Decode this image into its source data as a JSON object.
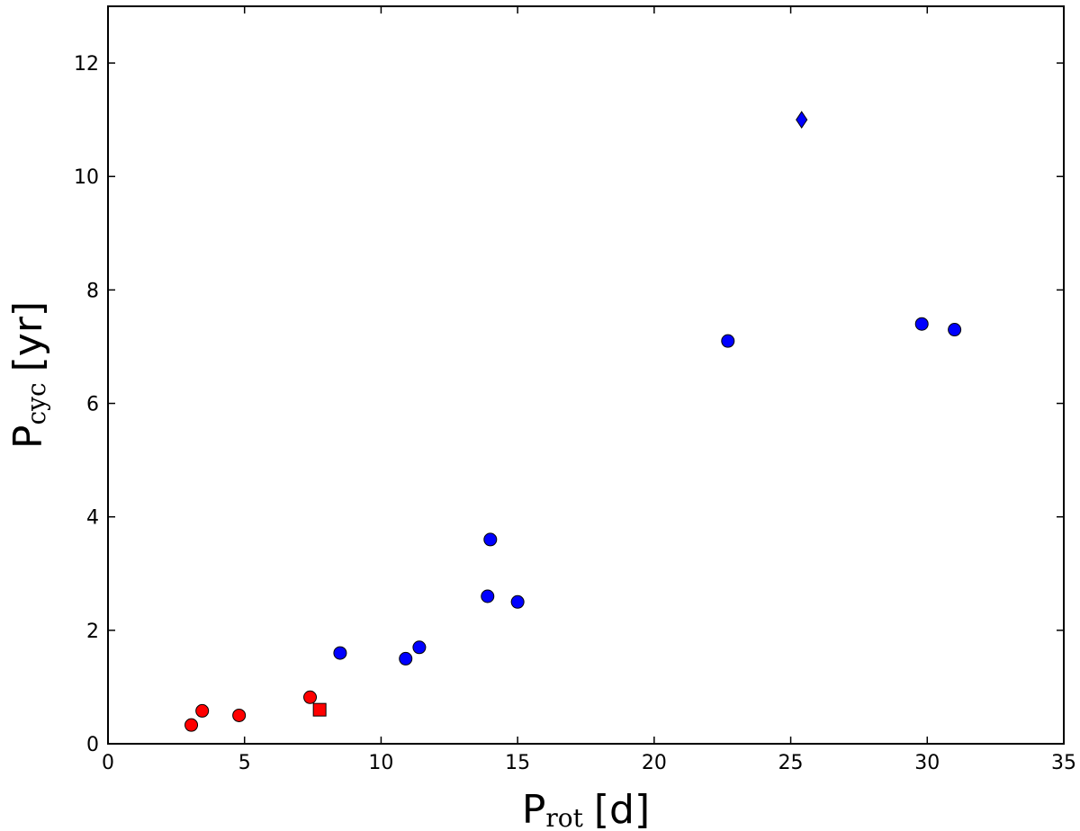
{
  "chart_data": {
    "type": "scatter",
    "title": "",
    "xlabel": {
      "main": "P",
      "sub": "rot",
      "unit": "[d]"
    },
    "ylabel": {
      "main": "P",
      "sub": "cyc",
      "unit": "[yr]"
    },
    "xlim": [
      0,
      35
    ],
    "ylim": [
      0,
      13
    ],
    "xticks": [
      0,
      5,
      10,
      15,
      20,
      25,
      30,
      35
    ],
    "yticks": [
      0,
      2,
      4,
      6,
      8,
      10,
      12
    ],
    "grid": false,
    "series": [
      {
        "marker": "circle",
        "color": "#ff0000",
        "points": [
          [
            3.05,
            0.33
          ],
          [
            3.45,
            0.58
          ],
          [
            4.8,
            0.5
          ],
          [
            7.4,
            0.82
          ]
        ]
      },
      {
        "marker": "square",
        "color": "#ff0000",
        "points": [
          [
            7.75,
            0.6
          ]
        ]
      },
      {
        "marker": "circle",
        "color": "#0000ff",
        "points": [
          [
            8.5,
            1.6
          ],
          [
            10.9,
            1.5
          ],
          [
            11.4,
            1.7
          ],
          [
            13.9,
            2.6
          ],
          [
            14.0,
            3.6
          ],
          [
            15.0,
            2.5
          ],
          [
            22.7,
            7.1
          ],
          [
            29.8,
            7.4
          ],
          [
            31.0,
            7.3
          ]
        ]
      },
      {
        "marker": "diamond",
        "color": "#0000ff",
        "points": [
          [
            25.4,
            11.0
          ]
        ]
      }
    ]
  }
}
